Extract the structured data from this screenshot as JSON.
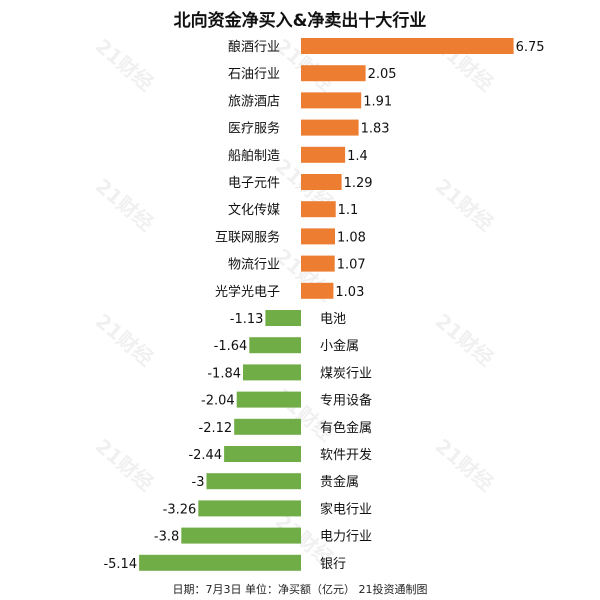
{
  "chart_data": {
    "type": "bar",
    "orientation": "horizontal",
    "title": "北向资金净买入&净卖出十大行业",
    "footer": "日期：7月3日 单位：净买额（亿元） 21投资通制图",
    "watermark": "21财经",
    "colors": {
      "positive": "#ed7d31",
      "negative": "#70ad47"
    },
    "categories": [
      "酿酒行业",
      "石油行业",
      "旅游酒店",
      "医疗服务",
      "船舶制造",
      "电子元件",
      "文化传媒",
      "互联网服务",
      "物流行业",
      "光学光电子",
      "电池",
      "小金属",
      "煤炭行业",
      "专用设备",
      "有色金属",
      "软件开发",
      "贵金属",
      "家电行业",
      "电力行业",
      "银行"
    ],
    "values": [
      6.75,
      2.05,
      1.91,
      1.83,
      1.4,
      1.29,
      1.1,
      1.08,
      1.07,
      1.03,
      -1.13,
      -1.64,
      -1.84,
      -2.04,
      -2.12,
      -2.44,
      -3,
      -3.26,
      -3.8,
      -5.14
    ],
    "value_labels": [
      "6.75",
      "2.05",
      "1.91",
      "1.83",
      "1.4",
      "1.29",
      "1.1",
      "1.08",
      "1.07",
      "1.03",
      "-1.13",
      "-1.64",
      "-1.84",
      "-2.04",
      "-2.12",
      "-2.44",
      "-3",
      "-3.26",
      "-3.8",
      "-5.14"
    ],
    "legend": "none",
    "grid": false
  }
}
